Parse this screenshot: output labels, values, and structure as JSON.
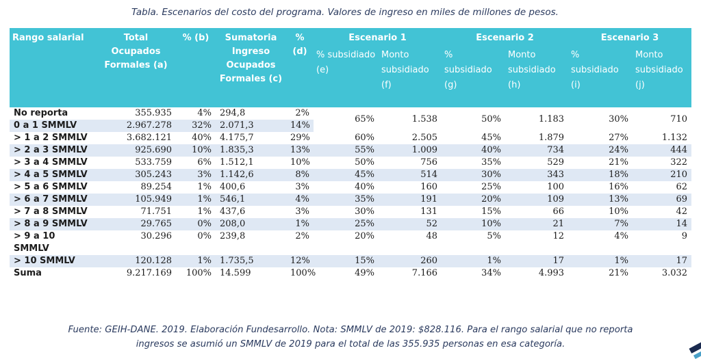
{
  "title": "Tabla. Escenarios del costo del programa. Valores de ingreso en miles de millones de pesos.",
  "header": {
    "rango": "Rango salarial",
    "total_ocupados": "Total Ocupados Formales (a)",
    "pct_b": "% (b)",
    "sumatoria": "Sumatoria Ingreso Ocupados Formales (c)",
    "pct_d": "% (d)",
    "esc1": "Escenario 1",
    "esc2": "Escenario 2",
    "esc3": "Escenario 3",
    "e": "% subsidiado (e)",
    "f": "Monto subsidiado (f)",
    "g": "% subsidiado (g)",
    "h": "Monto subsidiado (h)",
    "i": "% subsidiado (i)",
    "j": "Monto subsidiado (j)"
  },
  "merged_first": {
    "e": "65%",
    "f": "1.538",
    "g": "50%",
    "h": "1.183",
    "i": "30%",
    "j": "710"
  },
  "rows": [
    {
      "rango": "No reporta",
      "a": "355.935",
      "b": "4%",
      "c": "294,8",
      "d": "2%"
    },
    {
      "rango": "0 a 1 SMMLV",
      "a": "2.967.278",
      "b": "32%",
      "c": "2.071,3",
      "d": "14%"
    },
    {
      "rango": "> 1 a 2 SMMLV",
      "a": "3.682.121",
      "b": "40%",
      "c": "4.175,7",
      "d": "29%",
      "e": "60%",
      "f": "2.505",
      "g": "45%",
      "h": "1.879",
      "i": "27%",
      "j": "1.132"
    },
    {
      "rango": "> 2 a 3 SMMLV",
      "a": "925.690",
      "b": "10%",
      "c": "1.835,3",
      "d": "13%",
      "e": "55%",
      "f": "1.009",
      "g": "40%",
      "h": "734",
      "i": "24%",
      "j": "444"
    },
    {
      "rango": "> 3 a 4 SMMLV",
      "a": "533.759",
      "b": "6%",
      "c": "1.512,1",
      "d": "10%",
      "e": "50%",
      "f": "756",
      "g": "35%",
      "h": "529",
      "i": "21%",
      "j": "322"
    },
    {
      "rango": "> 4 a 5 SMMLV",
      "a": "305.243",
      "b": "3%",
      "c": "1.142,6",
      "d": "8%",
      "e": "45%",
      "f": "514",
      "g": "30%",
      "h": "343",
      "i": "18%",
      "j": "210"
    },
    {
      "rango": "> 5 a 6 SMMLV",
      "a": "89.254",
      "b": "1%",
      "c": "400,6",
      "d": "3%",
      "e": "40%",
      "f": "160",
      "g": "25%",
      "h": "100",
      "i": "16%",
      "j": "62"
    },
    {
      "rango": "> 6 a 7 SMMLV",
      "a": "105.949",
      "b": "1%",
      "c": "546,1",
      "d": "4%",
      "e": "35%",
      "f": "191",
      "g": "20%",
      "h": "109",
      "i": "13%",
      "j": "69"
    },
    {
      "rango": "> 7 a 8 SMMLV",
      "a": "71.751",
      "b": "1%",
      "c": "437,6",
      "d": "3%",
      "e": "30%",
      "f": "131",
      "g": "15%",
      "h": "66",
      "i": "10%",
      "j": "42"
    },
    {
      "rango": "> 8 a 9 SMMLV",
      "a": "29.765",
      "b": "0%",
      "c": "208,0",
      "d": "1%",
      "e": "25%",
      "f": "52",
      "g": "10%",
      "h": "21",
      "i": "7%",
      "j": "14"
    },
    {
      "rango": "> 9 a 10 SMMLV",
      "a": "30.296",
      "b": "0%",
      "c": "239,8",
      "d": "2%",
      "e": "20%",
      "f": "48",
      "g": "5%",
      "h": "12",
      "i": "4%",
      "j": "9"
    },
    {
      "rango": "> 10 SMMLV",
      "a": "120.128",
      "b": "1%",
      "c": "1.735,5",
      "d": "12%",
      "e": "15%",
      "f": "260",
      "g": "1%",
      "h": "17",
      "i": "1%",
      "j": "17"
    },
    {
      "rango": "Suma",
      "a": "9.217.169",
      "b": "100%",
      "c": "14.599",
      "d": "100%",
      "e": "49%",
      "f": "7.166",
      "g": "34%",
      "h": "4.993",
      "i": "21%",
      "j": "3.032"
    }
  ],
  "footnote_line1": "Fuente: GEIH-DANE. 2019. Elaboración Fundesarrollo. Nota: SMMLV de 2019: $828.116. Para el rango salarial que no reporta",
  "footnote_line2": "ingresos se asumió un SMMLV de 2019 para el total de las 355.935 personas en esa categoría.",
  "colors": {
    "header_bg": "#42c3d5",
    "row_alt": "#dfe8f4",
    "caption_text": "#2a3a5e"
  }
}
